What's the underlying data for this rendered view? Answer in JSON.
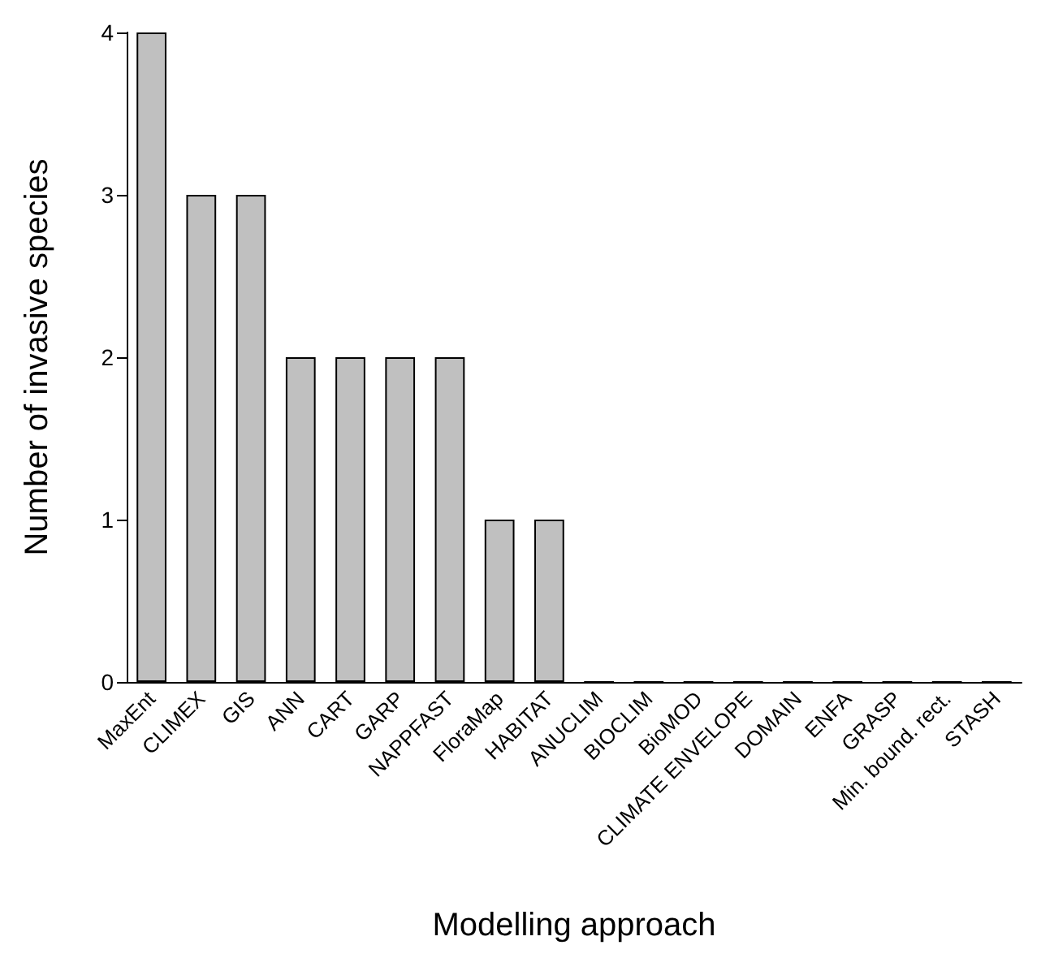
{
  "chart_data": {
    "type": "bar",
    "xlabel": "Modelling approach",
    "ylabel": "Number of invasive species",
    "categories": [
      "MaxEnt",
      "CLIMEX",
      "GIS",
      "ANN",
      "CART",
      "GARP",
      "NAPPFAST",
      "FloraMap",
      "HABITAT",
      "ANUCLIM",
      "BIOCLIM",
      "BioMOD",
      "CLIMATE ENVELOPE",
      "DOMAIN",
      "ENFA",
      "GRASP",
      "Min. bound. rect.",
      "STASH"
    ],
    "values": [
      4,
      3,
      3,
      2,
      2,
      2,
      2,
      1,
      1,
      0,
      0,
      0,
      0,
      0,
      0,
      0,
      0,
      0
    ],
    "color": "#c0c0c0",
    "ylim": [
      0,
      4
    ],
    "yticks": [
      0,
      1,
      2,
      3,
      4
    ],
    "grid": false
  }
}
